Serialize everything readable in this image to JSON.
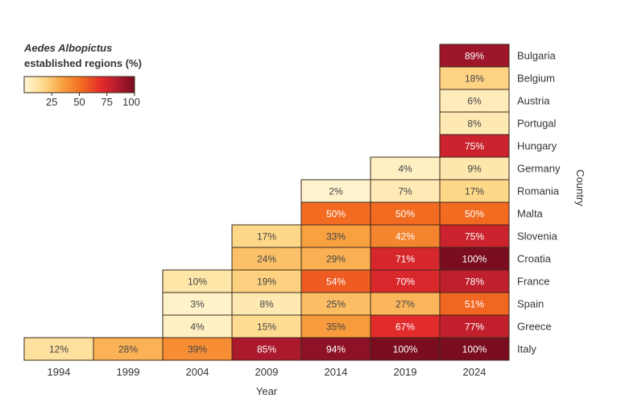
{
  "chart_data": {
    "type": "heatmap",
    "title": "",
    "legend": {
      "title": "Aedes Albopictus",
      "subtitle": "established regions (%)",
      "ticks": [
        "25",
        "50",
        "75",
        "100"
      ],
      "range": [
        0,
        100
      ]
    },
    "xlabel": "Year",
    "ylabel": "Country",
    "years": [
      "1994",
      "1999",
      "2004",
      "2009",
      "2014",
      "2019",
      "2024"
    ],
    "countries": [
      "Bulgaria",
      "Belgium",
      "Austria",
      "Portugal",
      "Hungary",
      "Germany",
      "Romania",
      "Malta",
      "Slovenia",
      "Croatia",
      "France",
      "Spain",
      "Greece",
      "Italy"
    ],
    "cells": [
      {
        "country": "Bulgaria",
        "year": "2024",
        "value": 89,
        "label": "89%"
      },
      {
        "country": "Belgium",
        "year": "2024",
        "value": 18,
        "label": "18%"
      },
      {
        "country": "Austria",
        "year": "2024",
        "value": 6,
        "label": "6%"
      },
      {
        "country": "Portugal",
        "year": "2024",
        "value": 8,
        "label": "8%"
      },
      {
        "country": "Hungary",
        "year": "2024",
        "value": 75,
        "label": "75%"
      },
      {
        "country": "Germany",
        "year": "2019",
        "value": 4,
        "label": "4%"
      },
      {
        "country": "Germany",
        "year": "2024",
        "value": 9,
        "label": "9%"
      },
      {
        "country": "Romania",
        "year": "2014",
        "value": 2,
        "label": "2%"
      },
      {
        "country": "Romania",
        "year": "2019",
        "value": 7,
        "label": "7%"
      },
      {
        "country": "Romania",
        "year": "2024",
        "value": 17,
        "label": "17%"
      },
      {
        "country": "Malta",
        "year": "2014",
        "value": 50,
        "label": "50%"
      },
      {
        "country": "Malta",
        "year": "2019",
        "value": 50,
        "label": "50%"
      },
      {
        "country": "Malta",
        "year": "2024",
        "value": 50,
        "label": "50%"
      },
      {
        "country": "Slovenia",
        "year": "2009",
        "value": 17,
        "label": "17%"
      },
      {
        "country": "Slovenia",
        "year": "2014",
        "value": 33,
        "label": "33%"
      },
      {
        "country": "Slovenia",
        "year": "2019",
        "value": 42,
        "label": "42%"
      },
      {
        "country": "Slovenia",
        "year": "2024",
        "value": 75,
        "label": "75%"
      },
      {
        "country": "Croatia",
        "year": "2009",
        "value": 24,
        "label": "24%"
      },
      {
        "country": "Croatia",
        "year": "2014",
        "value": 29,
        "label": "29%"
      },
      {
        "country": "Croatia",
        "year": "2019",
        "value": 71,
        "label": "71%"
      },
      {
        "country": "Croatia",
        "year": "2024",
        "value": 100,
        "label": "100%"
      },
      {
        "country": "France",
        "year": "2004",
        "value": 10,
        "label": "10%"
      },
      {
        "country": "France",
        "year": "2009",
        "value": 19,
        "label": "19%"
      },
      {
        "country": "France",
        "year": "2014",
        "value": 54,
        "label": "54%"
      },
      {
        "country": "France",
        "year": "2019",
        "value": 70,
        "label": "70%"
      },
      {
        "country": "France",
        "year": "2024",
        "value": 78,
        "label": "78%"
      },
      {
        "country": "Spain",
        "year": "2004",
        "value": 3,
        "label": "3%"
      },
      {
        "country": "Spain",
        "year": "2009",
        "value": 8,
        "label": "8%"
      },
      {
        "country": "Spain",
        "year": "2014",
        "value": 25,
        "label": "25%"
      },
      {
        "country": "Spain",
        "year": "2019",
        "value": 27,
        "label": "27%"
      },
      {
        "country": "Spain",
        "year": "2024",
        "value": 51,
        "label": "51%"
      },
      {
        "country": "Greece",
        "year": "2004",
        "value": 4,
        "label": "4%"
      },
      {
        "country": "Greece",
        "year": "2009",
        "value": 15,
        "label": "15%"
      },
      {
        "country": "Greece",
        "year": "2014",
        "value": 35,
        "label": "35%"
      },
      {
        "country": "Greece",
        "year": "2019",
        "value": 67,
        "label": "67%"
      },
      {
        "country": "Greece",
        "year": "2024",
        "value": 77,
        "label": "77%"
      },
      {
        "country": "Italy",
        "year": "1994",
        "value": 12,
        "label": "12%"
      },
      {
        "country": "Italy",
        "year": "1999",
        "value": 28,
        "label": "28%"
      },
      {
        "country": "Italy",
        "year": "2004",
        "value": 39,
        "label": "39%"
      },
      {
        "country": "Italy",
        "year": "2009",
        "value": 85,
        "label": "85%"
      },
      {
        "country": "Italy",
        "year": "2014",
        "value": 94,
        "label": "94%"
      },
      {
        "country": "Italy",
        "year": "2019",
        "value": 100,
        "label": "100%"
      },
      {
        "country": "Italy",
        "year": "2024",
        "value": 100,
        "label": "100%"
      }
    ],
    "colors": {
      "scale": [
        "#fff7d6",
        "#fed98a",
        "#f9a03f",
        "#f26b21",
        "#e32b2b",
        "#b01a2e",
        "#7a0d20"
      ],
      "cell_stroke": "#3a2a1a",
      "text_dark": "#444444",
      "text_light": "#ffffff"
    }
  }
}
